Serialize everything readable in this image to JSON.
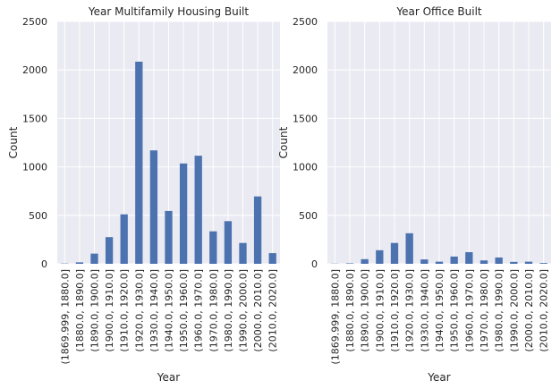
{
  "chart_data": [
    {
      "type": "bar",
      "title": "Year Multifamily Housing Built",
      "xlabel": "Year",
      "ylabel": "Count",
      "ylim": [
        0,
        2500
      ],
      "yticks": [
        0,
        500,
        1000,
        1500,
        2000,
        2500
      ],
      "grid": true,
      "categories": [
        "(1869.999, 1880.0]",
        "(1880.0, 1890.0]",
        "(1890.0, 1900.0]",
        "(1900.0, 1910.0]",
        "(1910.0, 1920.0]",
        "(1920.0, 1930.0]",
        "(1930.0, 1940.0]",
        "(1940.0, 1950.0]",
        "(1950.0, 1960.0]",
        "(1960.0, 1970.0]",
        "(1970.0, 1980.0]",
        "(1980.0, 1990.0]",
        "(1990.0, 2000.0]",
        "(2000.0, 2010.0]",
        "(2010.0, 2020.0]"
      ],
      "values": [
        3,
        15,
        105,
        275,
        510,
        2085,
        1170,
        545,
        1035,
        1115,
        335,
        440,
        215,
        695,
        110
      ],
      "bar_color": "#4c72b0"
    },
    {
      "type": "bar",
      "title": "Year Office Built",
      "xlabel": "Year",
      "ylabel": "Count",
      "ylim": [
        0,
        2500
      ],
      "yticks": [
        0,
        500,
        1000,
        1500,
        2000,
        2500
      ],
      "grid": true,
      "categories": [
        "(1869.999, 1880.0]",
        "(1880.0, 1890.0]",
        "(1890.0, 1900.0]",
        "(1900.0, 1910.0]",
        "(1910.0, 1920.0]",
        "(1920.0, 1930.0]",
        "(1930.0, 1940.0]",
        "(1940.0, 1950.0]",
        "(1950.0, 1960.0]",
        "(1960.0, 1970.0]",
        "(1970.0, 1980.0]",
        "(1980.0, 1990.0]",
        "(1990.0, 2000.0]",
        "(2000.0, 2010.0]",
        "(2010.0, 2020.0]"
      ],
      "values": [
        2,
        5,
        48,
        140,
        215,
        315,
        45,
        22,
        75,
        120,
        35,
        65,
        20,
        22,
        8
      ],
      "bar_color": "#4c72b0"
    }
  ],
  "style": {
    "plot_background": "#eaeaf2",
    "grid_color": "#ffffff",
    "text_color": "#262626"
  }
}
